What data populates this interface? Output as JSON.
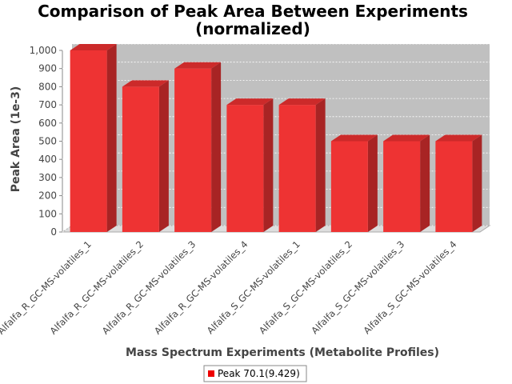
{
  "chart_data": {
    "type": "bar",
    "title_line1": "Comparison of Peak Area Between Experiments",
    "title_line2": "(normalized)",
    "xlabel": "Mass Spectrum Experiments (Metabolite Profiles)",
    "ylabel": "Peak Area (1e-3)",
    "ylim": [
      0,
      1000
    ],
    "yticks": [
      "0",
      "100",
      "200",
      "300",
      "400",
      "500",
      "600",
      "700",
      "800",
      "900",
      "1,000"
    ],
    "categories": [
      "Alfalfa_R_GC-MS-volatiles_1",
      "Alfalfa_R_GC-MS-volatiles_2",
      "Alfalfa_R_GC-MS-volatiles_3",
      "Alfalfa_R_GC-MS-volatiles_4",
      "Alfalfa_S_GC-MS-volatiles_1",
      "Alfalfa_S_GC-MS-volatiles_2",
      "Alfalfa_S_GC-MS-volatiles_3",
      "Alfalfa_S_GC-MS-volatiles_4"
    ],
    "series": [
      {
        "name": "Peak 70.1(9.429)",
        "color": "#ee3333",
        "values": [
          1000,
          800,
          900,
          700,
          700,
          500,
          500,
          500
        ]
      }
    ],
    "legend": "bottom-center",
    "grid": true,
    "style": "3d-bar"
  }
}
